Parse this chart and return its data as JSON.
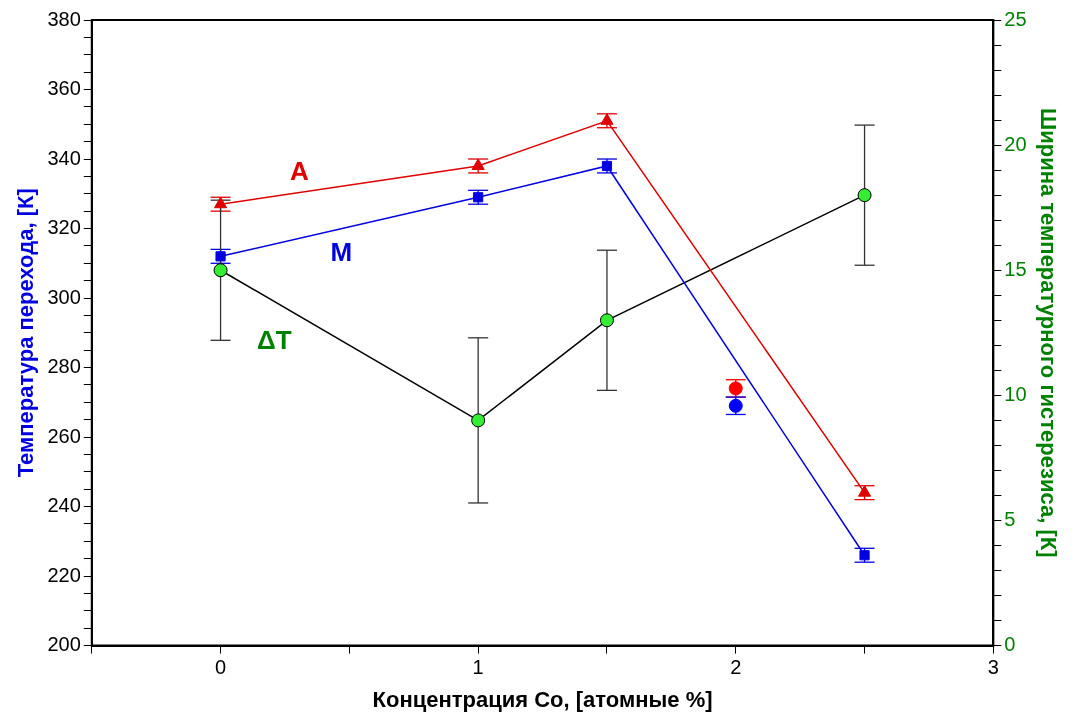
{
  "chart_data": {
    "type": "line",
    "xlabel": "Концентрация Co, [атомные %]",
    "ylabel": "Температура перехода, [К]",
    "y2label": "Ширина температурного гистерезиса, [К]",
    "xlim": [
      -0.5,
      3
    ],
    "xticks": [
      {
        "value": -0.5,
        "label": null
      },
      0,
      {
        "value": 0.5,
        "label": null
      },
      1,
      {
        "value": 1.5,
        "label": null
      },
      2,
      {
        "value": 2.5,
        "label": null
      },
      3
    ],
    "ylim": [
      200,
      380
    ],
    "yticks": [
      200,
      {
        "value": 205,
        "label": null
      },
      {
        "value": 210,
        "label": null
      },
      {
        "value": 215,
        "label": null
      },
      220,
      {
        "value": 225,
        "label": null
      },
      {
        "value": 230,
        "label": null
      },
      {
        "value": 235,
        "label": null
      },
      240,
      {
        "value": 245,
        "label": null
      },
      {
        "value": 250,
        "label": null
      },
      {
        "value": 255,
        "label": null
      },
      260,
      {
        "value": 265,
        "label": null
      },
      {
        "value": 270,
        "label": null
      },
      {
        "value": 275,
        "label": null
      },
      280,
      {
        "value": 285,
        "label": null
      },
      {
        "value": 290,
        "label": null
      },
      {
        "value": 295,
        "label": null
      },
      300,
      {
        "value": 305,
        "label": null
      },
      {
        "value": 310,
        "label": null
      },
      {
        "value": 315,
        "label": null
      },
      320,
      {
        "value": 325,
        "label": null
      },
      {
        "value": 330,
        "label": null
      },
      {
        "value": 335,
        "label": null
      },
      340,
      {
        "value": 345,
        "label": null
      },
      {
        "value": 350,
        "label": null
      },
      {
        "value": 355,
        "label": null
      },
      360,
      {
        "value": 365,
        "label": null
      },
      {
        "value": 370,
        "label": null
      },
      {
        "value": 375,
        "label": null
      },
      380
    ],
    "y2lim": [
      0,
      25
    ],
    "y2ticks": [
      0,
      {
        "value": 1,
        "label": null
      },
      {
        "value": 2,
        "label": null
      },
      {
        "value": 3,
        "label": null
      },
      {
        "value": 4,
        "label": null
      },
      5,
      {
        "value": 6,
        "label": null
      },
      {
        "value": 7,
        "label": null
      },
      {
        "value": 8,
        "label": null
      },
      {
        "value": 9,
        "label": null
      },
      10,
      {
        "value": 11,
        "label": null
      },
      {
        "value": 12,
        "label": null
      },
      {
        "value": 13,
        "label": null
      },
      {
        "value": 14,
        "label": null
      },
      15,
      {
        "value": 16,
        "label": null
      },
      {
        "value": 17,
        "label": null
      },
      {
        "value": 18,
        "label": null
      },
      {
        "value": 19,
        "label": null
      },
      20,
      {
        "value": 21,
        "label": null
      },
      {
        "value": 22,
        "label": null
      },
      {
        "value": 23,
        "label": null
      },
      {
        "value": 24,
        "label": null
      },
      25
    ],
    "grid": false,
    "legend": false,
    "series": [
      {
        "name": "A",
        "color": "#e00000",
        "marker": "triangle",
        "x": [
          0,
          1,
          1.5,
          2.5
        ],
        "values": [
          327,
          338,
          351,
          244
        ],
        "errors": [
          2,
          2,
          2,
          2
        ]
      },
      {
        "name": "M",
        "color": "#0000e0",
        "marker": "square",
        "x": [
          0,
          1,
          1.5,
          2.5
        ],
        "values": [
          312,
          329,
          338,
          226
        ],
        "errors": [
          2,
          2,
          2,
          2
        ]
      },
      {
        "name": "ΔT",
        "axis": "y2",
        "color": "#000000",
        "colors": [
          "#33ee33",
          "#33ee33",
          "#33ee33",
          "#33ee33"
        ],
        "marker": "circle",
        "x": [
          0,
          1,
          1.5,
          2.5
        ],
        "values": [
          15,
          9,
          13,
          18
        ],
        "errors": [
          2.8,
          3.3,
          2.8,
          2.8
        ]
      },
      {
        "type": "scatter",
        "color": "#ff0000",
        "marker": "circle",
        "x": [
          2
        ],
        "values": [
          274
        ],
        "errors": [
          2.5
        ]
      },
      {
        "type": "scatter",
        "color": "#0000ff",
        "marker": "circle",
        "x": [
          2
        ],
        "values": [
          269
        ],
        "errors": [
          2.5
        ]
      }
    ]
  }
}
